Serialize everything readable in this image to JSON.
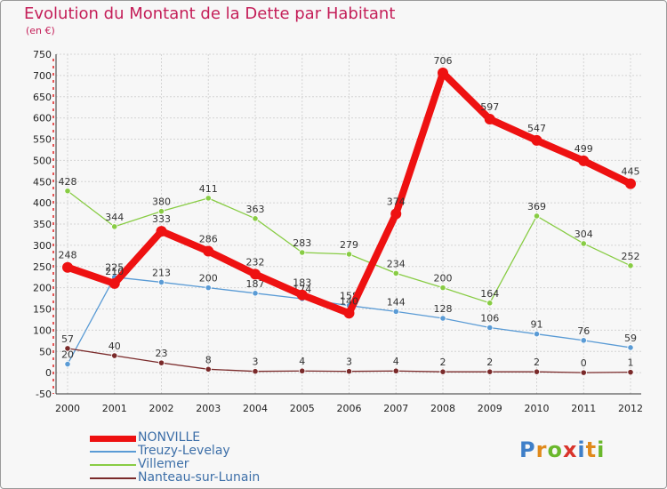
{
  "title": "Evolution du Montant de la Dette par Habitant",
  "unit": "(en €)",
  "logo": {
    "letters": [
      "P",
      "r",
      "o",
      "x",
      "i",
      "t",
      "i"
    ],
    "colors": [
      "#3f7fc8",
      "#e08a1c",
      "#6ab82c",
      "#d9342b",
      "#3f7fc8",
      "#e08a1c",
      "#6ab82c"
    ]
  },
  "chart_data": {
    "type": "line",
    "x": [
      "2000",
      "2001",
      "2002",
      "2003",
      "2004",
      "2005",
      "2006",
      "2007",
      "2008",
      "2009",
      "2010",
      "2011",
      "2012"
    ],
    "ylim": [
      -50,
      750
    ],
    "yticks": [
      -50,
      0,
      50,
      100,
      150,
      200,
      250,
      300,
      350,
      400,
      450,
      500,
      550,
      600,
      650,
      700,
      750
    ],
    "grid": true,
    "legend_position": "bottom-left",
    "series": [
      {
        "name": "Villemer",
        "color": "#88cc44",
        "values": [
          428,
          344,
          380,
          411,
          363,
          283,
          279,
          234,
          200,
          164,
          369,
          304,
          252
        ]
      },
      {
        "name": "Treuzy-Levelay",
        "color": "#5a9bd5",
        "values": [
          20,
          225,
          213,
          200,
          187,
          174,
          158,
          144,
          128,
          106,
          91,
          76,
          59
        ]
      },
      {
        "name": "Nanteau-sur-Lunain",
        "color": "#7a2a2a",
        "values": [
          57,
          40,
          23,
          8,
          3,
          4,
          3,
          4,
          2,
          2,
          2,
          0,
          1
        ]
      },
      {
        "name": "NONVILLE",
        "color": "#ee1111",
        "values": [
          248,
          210,
          333,
          286,
          232,
          183,
          140,
          374,
          706,
          597,
          547,
          499,
          445
        ]
      }
    ],
    "legend_order": [
      "NONVILLE",
      "Treuzy-Levelay",
      "Villemer",
      "Nanteau-sur-Lunain"
    ]
  }
}
